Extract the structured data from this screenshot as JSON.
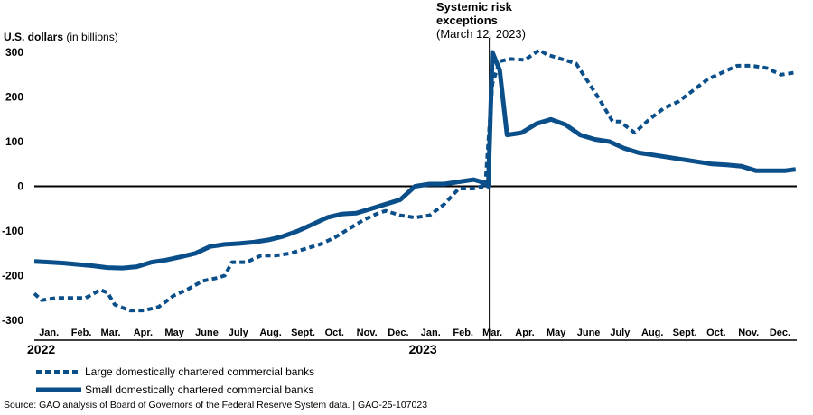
{
  "chart_data": {
    "type": "line",
    "ylabel_unit": "U.S. dollars",
    "ylabel_detail": "(in billions)",
    "ylim": [
      -300,
      300
    ],
    "yticks": [
      300,
      200,
      100,
      0,
      -100,
      -200,
      -300
    ],
    "x_range": [
      "2022-01-01",
      "2023-12-31"
    ],
    "x_ticks": [
      {
        "label": "Jan.",
        "date": "2022-01-15"
      },
      {
        "label": "Feb.",
        "date": "2022-02-15"
      },
      {
        "label": "Mar.",
        "date": "2022-03-15"
      },
      {
        "label": "Apr.",
        "date": "2022-04-15"
      },
      {
        "label": "May",
        "date": "2022-05-15"
      },
      {
        "label": "June",
        "date": "2022-06-15"
      },
      {
        "label": "July",
        "date": "2022-07-15"
      },
      {
        "label": "Aug.",
        "date": "2022-08-15"
      },
      {
        "label": "Sept.",
        "date": "2022-09-15"
      },
      {
        "label": "Oct.",
        "date": "2022-10-15"
      },
      {
        "label": "Nov.",
        "date": "2022-11-15"
      },
      {
        "label": "Dec.",
        "date": "2022-12-15"
      },
      {
        "label": "Jan.",
        "date": "2023-01-15"
      },
      {
        "label": "Feb.",
        "date": "2023-02-15"
      },
      {
        "label": "Mar.",
        "date": "2023-03-15"
      },
      {
        "label": "Apr.",
        "date": "2023-04-15"
      },
      {
        "label": "May",
        "date": "2023-05-15"
      },
      {
        "label": "June",
        "date": "2023-06-15"
      },
      {
        "label": "July",
        "date": "2023-07-15"
      },
      {
        "label": "Aug.",
        "date": "2023-08-15"
      },
      {
        "label": "Sept.",
        "date": "2023-09-15"
      },
      {
        "label": "Oct.",
        "date": "2023-10-15"
      },
      {
        "label": "Nov.",
        "date": "2023-11-15"
      },
      {
        "label": "Dec.",
        "date": "2023-12-15"
      }
    ],
    "year_labels": [
      {
        "label": "2022",
        "date": "2022-01-01"
      },
      {
        "label": "2023",
        "date": "2023-01-01"
      }
    ],
    "annotation": {
      "line1": "Systemic risk",
      "line2": "exceptions",
      "line3": "(March 12, 2023)",
      "date": "2023-03-12"
    },
    "series": [
      {
        "name": "Large domestically chartered commercial banks",
        "style": "dashed",
        "color": "#0b4f8a",
        "x": [
          "2022-01-01",
          "2022-01-08",
          "2022-01-22",
          "2022-02-05",
          "2022-02-19",
          "2022-03-05",
          "2022-03-12",
          "2022-03-19",
          "2022-04-02",
          "2022-04-16",
          "2022-04-30",
          "2022-05-14",
          "2022-05-28",
          "2022-06-11",
          "2022-06-25",
          "2022-07-02",
          "2022-07-09",
          "2022-07-23",
          "2022-08-06",
          "2022-08-20",
          "2022-09-03",
          "2022-09-17",
          "2022-10-01",
          "2022-10-15",
          "2022-10-29",
          "2022-11-12",
          "2022-11-26",
          "2022-12-03",
          "2022-12-17",
          "2022-12-31",
          "2023-01-14",
          "2023-01-28",
          "2023-02-11",
          "2023-02-25",
          "2023-03-04",
          "2023-03-08",
          "2023-03-15",
          "2023-03-22",
          "2023-04-01",
          "2023-04-15",
          "2023-04-29",
          "2023-05-06",
          "2023-05-20",
          "2023-06-03",
          "2023-06-17",
          "2023-06-24",
          "2023-07-08",
          "2023-07-15",
          "2023-07-29",
          "2023-08-12",
          "2023-08-26",
          "2023-09-09",
          "2023-09-23",
          "2023-10-07",
          "2023-10-21",
          "2023-11-04",
          "2023-11-18",
          "2023-12-02",
          "2023-12-16",
          "2023-12-30"
        ],
        "y": [
          -240,
          -255,
          -250,
          -250,
          -250,
          -232,
          -238,
          -265,
          -278,
          -278,
          -270,
          -245,
          -230,
          -212,
          -205,
          -200,
          -170,
          -170,
          -155,
          -155,
          -150,
          -140,
          -130,
          -115,
          -95,
          -75,
          -60,
          -55,
          -65,
          -70,
          -65,
          -40,
          -5,
          -5,
          0,
          -3,
          230,
          280,
          285,
          283,
          305,
          295,
          285,
          275,
          225,
          200,
          145,
          145,
          120,
          150,
          175,
          190,
          215,
          240,
          255,
          270,
          270,
          265,
          250,
          255
        ]
      },
      {
        "name": "Small domestically chartered commercial banks",
        "style": "solid",
        "color": "#0b4f8a",
        "x": [
          "2022-01-01",
          "2022-01-15",
          "2022-01-29",
          "2022-02-12",
          "2022-02-26",
          "2022-03-12",
          "2022-03-26",
          "2022-04-09",
          "2022-04-23",
          "2022-05-07",
          "2022-05-21",
          "2022-06-04",
          "2022-06-18",
          "2022-07-02",
          "2022-07-16",
          "2022-07-30",
          "2022-08-13",
          "2022-08-27",
          "2022-09-10",
          "2022-09-24",
          "2022-10-08",
          "2022-10-22",
          "2022-11-05",
          "2022-11-19",
          "2022-12-03",
          "2022-12-17",
          "2022-12-31",
          "2023-01-14",
          "2023-01-28",
          "2023-02-11",
          "2023-02-25",
          "2023-03-04",
          "2023-03-08",
          "2023-03-11",
          "2023-03-15",
          "2023-03-22",
          "2023-03-29",
          "2023-04-12",
          "2023-04-26",
          "2023-05-10",
          "2023-05-24",
          "2023-06-07",
          "2023-06-21",
          "2023-07-05",
          "2023-07-19",
          "2023-08-02",
          "2023-08-16",
          "2023-08-30",
          "2023-09-13",
          "2023-09-27",
          "2023-10-11",
          "2023-10-25",
          "2023-11-08",
          "2023-11-22",
          "2023-12-06",
          "2023-12-20",
          "2023-12-30"
        ],
        "y": [
          -168,
          -170,
          -172,
          -175,
          -178,
          -182,
          -183,
          -180,
          -170,
          -165,
          -158,
          -150,
          -135,
          -130,
          -128,
          -125,
          -120,
          -112,
          -100,
          -85,
          -70,
          -62,
          -60,
          -50,
          -40,
          -30,
          0,
          5,
          5,
          10,
          15,
          10,
          5,
          0,
          300,
          260,
          115,
          120,
          140,
          150,
          138,
          115,
          105,
          100,
          85,
          75,
          70,
          65,
          60,
          55,
          50,
          48,
          45,
          35,
          35,
          35,
          38
        ]
      }
    ]
  },
  "legend": [
    {
      "label": "Large domestically chartered commercial banks",
      "style": "dashed"
    },
    {
      "label": "Small domestically chartered commercial banks",
      "style": "solid"
    }
  ],
  "source": "Source: GAO analysis of Board of Governors of the Federal Reserve System data.  |  GAO-25-107023"
}
